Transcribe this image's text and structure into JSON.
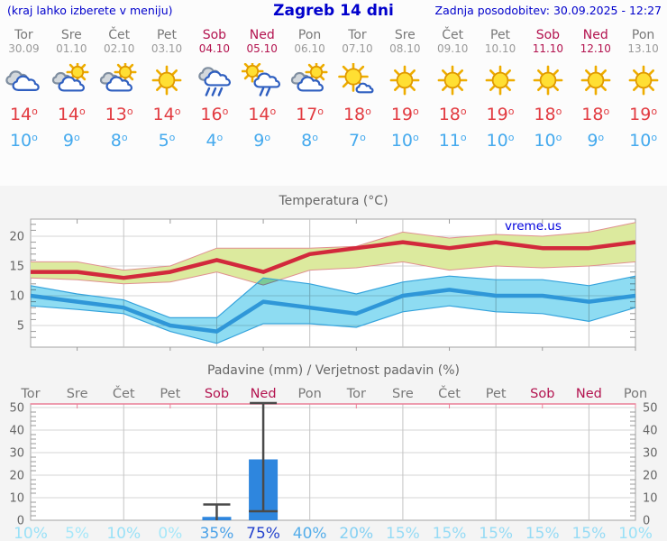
{
  "header": {
    "left": "(kraj lahko izberete v meniju)",
    "title": "Zagreb 14 dni",
    "updated": "Zadnja posodobitev: 30.09.2025 - 12:27"
  },
  "days": [
    {
      "label": "Tor",
      "date": "30.09",
      "weekend": false,
      "icon": "cloudy"
    },
    {
      "label": "Sre",
      "date": "01.10",
      "weekend": false,
      "icon": "partly"
    },
    {
      "label": "Čet",
      "date": "02.10",
      "weekend": false,
      "icon": "partly"
    },
    {
      "label": "Pet",
      "date": "03.10",
      "weekend": false,
      "icon": "sunny"
    },
    {
      "label": "Sob",
      "date": "04.10",
      "weekend": true,
      "icon": "rain"
    },
    {
      "label": "Ned",
      "date": "05.10",
      "weekend": true,
      "icon": "sunrain"
    },
    {
      "label": "Pon",
      "date": "06.10",
      "weekend": false,
      "icon": "partly"
    },
    {
      "label": "Tor",
      "date": "07.10",
      "weekend": false,
      "icon": "mostlysunny"
    },
    {
      "label": "Sre",
      "date": "08.10",
      "weekend": false,
      "icon": "sunny"
    },
    {
      "label": "Čet",
      "date": "09.10",
      "weekend": false,
      "icon": "sunny"
    },
    {
      "label": "Pet",
      "date": "10.10",
      "weekend": false,
      "icon": "sunny"
    },
    {
      "label": "Sob",
      "date": "11.10",
      "weekend": true,
      "icon": "sunny"
    },
    {
      "label": "Ned",
      "date": "12.10",
      "weekend": true,
      "icon": "sunny"
    },
    {
      "label": "Pon",
      "date": "13.10",
      "weekend": false,
      "icon": "sunny"
    }
  ],
  "colors": {
    "header_blue": "#0000cc",
    "weekend": "#b3134f",
    "weekday": "#787878",
    "date_gray": "#9a9a9a",
    "temp_high": "#e23b41",
    "temp_low": "#45aaee",
    "line_red": "#d2293c",
    "line_blue": "#2f97d8",
    "band_green": "#dcea9e",
    "band_green_edge": "#e09090",
    "band_blue": "#8edcf2",
    "band_blue_edge": "#35a3dc",
    "bar_blue": "#2e86de",
    "whisker": "#4a4a4a",
    "axis_text": "#666666",
    "axis_frame": "#a3a3a3",
    "pink_axis": "#ea7f97",
    "grid_h": "#d6d6d6",
    "grid_v": "#c4c4c4"
  },
  "chart_data": [
    {
      "type": "area",
      "title": "Temperatura (°C)",
      "watermark": "vreme.us",
      "categories": [
        "Tor 30.09",
        "Sre 01.10",
        "Čet 02.10",
        "Pet 03.10",
        "Sob 04.10",
        "Ned 05.10",
        "Pon 06.10",
        "Tor 07.10",
        "Sre 08.10",
        "Čet 09.10",
        "Pet 10.10",
        "Sob 11.10",
        "Ned 12.10",
        "Pon 13.10"
      ],
      "ylabel": "°C",
      "ylim": [
        1.4,
        22.9
      ],
      "yticks": [
        5,
        10,
        15,
        20
      ],
      "grid_vertical_day_indices": [
        2,
        4,
        6,
        8,
        10,
        12
      ],
      "series": [
        {
          "name": "temp_max",
          "values": [
            14,
            14,
            13,
            14,
            16,
            14,
            17,
            18,
            19,
            18,
            19,
            18,
            18,
            19
          ]
        },
        {
          "name": "temp_max_band_upper",
          "values": [
            15.7,
            15.7,
            14.3,
            15.0,
            18.0,
            18.0,
            18.0,
            18.3,
            20.7,
            19.7,
            20.3,
            20.0,
            20.7,
            22.3
          ]
        },
        {
          "name": "temp_max_band_lower",
          "values": [
            13.0,
            12.7,
            12.0,
            12.3,
            14.0,
            11.8,
            14.3,
            14.7,
            15.7,
            14.3,
            15.0,
            14.7,
            15.0,
            15.7
          ]
        },
        {
          "name": "temp_min",
          "values": [
            10,
            9,
            8,
            5,
            4,
            9,
            8,
            7,
            10,
            11,
            10,
            10,
            9,
            10
          ]
        },
        {
          "name": "temp_min_band_upper",
          "values": [
            11.7,
            10.3,
            9.3,
            6.3,
            6.3,
            13.0,
            12.0,
            10.3,
            12.3,
            13.3,
            12.7,
            12.7,
            11.7,
            13.3
          ]
        },
        {
          "name": "temp_min_band_lower",
          "values": [
            8.3,
            7.7,
            7.0,
            4.0,
            2.0,
            5.3,
            5.3,
            4.7,
            7.3,
            8.3,
            7.3,
            7.0,
            5.7,
            8.0
          ]
        }
      ]
    },
    {
      "type": "bar",
      "title": "Padavine (mm) / Verjetnost padavin (%)",
      "ylim": [
        0,
        51.6
      ],
      "yticks": [
        0,
        10,
        20,
        30,
        40,
        50
      ],
      "grid_vertical_day_indices": [
        2,
        4,
        6,
        8,
        10,
        12
      ],
      "bars": [
        {
          "day_index": 4,
          "amount_mm": 1.5,
          "range_low_mm": 0,
          "range_high_mm": 7
        },
        {
          "day_index": 5,
          "amount_mm": 27,
          "range_low_mm": 4,
          "range_high_mm": 52
        }
      ],
      "probability_percent": [
        10,
        5,
        10,
        0,
        35,
        75,
        40,
        20,
        15,
        15,
        15,
        15,
        15,
        10
      ],
      "probability_colors": [
        "#9ae1f7",
        "#a6e7f9",
        "#9ae1f7",
        "#a6e7f9",
        "#4da3e8",
        "#2543cd",
        "#55aeea",
        "#86d1f3",
        "#96dbf5",
        "#96dbf5",
        "#96dbf5",
        "#96dbf5",
        "#96dbf5",
        "#9ae1f7"
      ]
    }
  ]
}
